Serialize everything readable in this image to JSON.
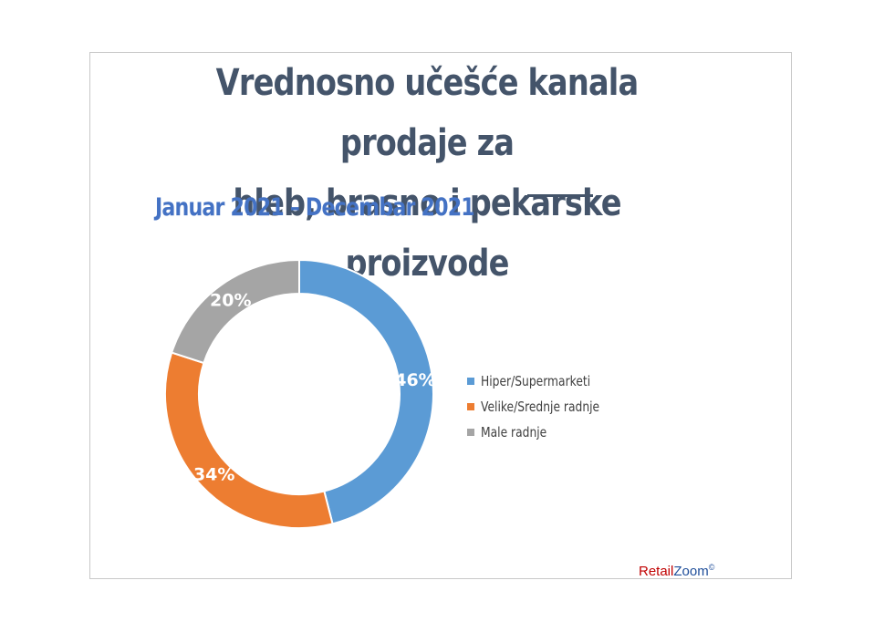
{
  "title": {
    "line1": "Vrednosno učešće kanala prodaje za",
    "line2": "hleb, brasno i pekarske proizvode"
  },
  "subtitle": "Januar 2021 – Decembar 2021",
  "brand": {
    "part1": "Retail",
    "part2": "Zoom",
    "mark": "©"
  },
  "chart_data": {
    "type": "pie",
    "donut": true,
    "categories": [
      "Hiper/Supermarketi",
      "Velike/Srednje radnje",
      "Male radnje"
    ],
    "values": [
      46,
      34,
      20
    ],
    "data_labels": [
      "46%",
      "34%",
      "20%"
    ],
    "colors": [
      "#5b9bd5",
      "#ed7d31",
      "#a5a5a5"
    ],
    "legend_position": "right"
  }
}
